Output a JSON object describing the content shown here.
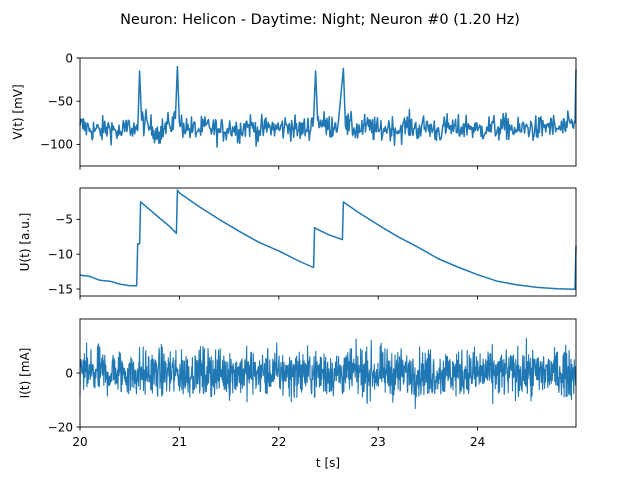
{
  "figure": {
    "title": "Neuron: Helicon - Daytime: Night; Neuron #0 (1.20 Hz)",
    "line_color": "#1f77b4",
    "xlabel": "t [s]",
    "x_ticks": [
      "20",
      "21",
      "22",
      "23",
      "24"
    ]
  },
  "chart_data": [
    {
      "type": "line",
      "ylabel": "V(t) [mV]",
      "xlim": [
        20,
        24.99
      ],
      "ylim": [
        -125,
        0
      ],
      "y_ticks": [
        0,
        -50,
        -100
      ],
      "y_tick_labels": [
        "0",
        "−50",
        "−100"
      ],
      "noise": "high-frequency membrane fluctuation between about -120 and -50 mV",
      "series": [
        {
          "x": [
            20.0,
            20.1,
            20.2,
            20.3,
            20.4,
            20.5,
            20.58,
            20.6,
            20.62,
            20.7,
            20.8,
            20.9,
            20.96,
            20.98,
            21.0,
            21.1,
            21.2,
            21.3,
            21.4,
            21.5,
            21.6,
            21.7,
            21.8,
            21.9,
            22.0,
            22.1,
            22.2,
            22.3,
            22.35,
            22.37,
            22.39,
            22.5,
            22.6,
            22.65,
            22.67,
            22.8,
            22.9,
            23.0,
            23.1,
            23.2,
            23.3,
            23.4,
            23.5,
            23.6,
            23.7,
            23.8,
            23.9,
            24.0,
            24.1,
            24.2,
            24.3,
            24.4,
            24.5,
            24.6,
            24.7,
            24.8,
            24.9,
            24.98,
            24.99
          ],
          "values": [
            -78,
            -82,
            -85,
            -80,
            -88,
            -79,
            -84,
            -15,
            -72,
            -80,
            -86,
            -78,
            -70,
            -10,
            -75,
            -82,
            -84,
            -79,
            -86,
            -80,
            -83,
            -77,
            -85,
            -80,
            -82,
            -78,
            -84,
            -81,
            -70,
            -15,
            -72,
            -80,
            -74,
            -12,
            -78,
            -83,
            -79,
            -85,
            -80,
            -84,
            -78,
            -82,
            -79,
            -85,
            -80,
            -83,
            -78,
            -84,
            -80,
            -82,
            -79,
            -85,
            -80,
            -83,
            -78,
            -82,
            -80,
            -75,
            -13
          ]
        }
      ]
    },
    {
      "type": "line",
      "ylabel": "U(t) [a.u.]",
      "xlim": [
        20,
        24.99
      ],
      "ylim": [
        -16,
        -0.5
      ],
      "y_ticks": [
        -5,
        -10,
        -15
      ],
      "y_tick_labels": [
        "−5",
        "−10",
        "−15"
      ],
      "series": [
        {
          "x": [
            20.0,
            20.1,
            20.2,
            20.3,
            20.4,
            20.5,
            20.57,
            20.58,
            20.6,
            20.61,
            20.7,
            20.8,
            20.9,
            20.97,
            20.98,
            21.0,
            21.2,
            21.4,
            21.6,
            21.8,
            22.0,
            22.2,
            22.35,
            22.36,
            22.37,
            22.5,
            22.64,
            22.65,
            22.66,
            22.8,
            23.0,
            23.2,
            23.4,
            23.6,
            23.8,
            24.0,
            24.2,
            24.4,
            24.6,
            24.8,
            24.98,
            24.99
          ],
          "values": [
            -13.0,
            -13.2,
            -13.7,
            -14.0,
            -14.3,
            -14.5,
            -14.6,
            -8.5,
            -8.5,
            -2.5,
            -3.6,
            -4.8,
            -6.0,
            -7.0,
            -0.8,
            -1.2,
            -3.2,
            -5.0,
            -6.7,
            -8.3,
            -9.6,
            -11.0,
            -12.0,
            -6.2,
            -6.3,
            -7.2,
            -7.9,
            -2.5,
            -2.6,
            -4.0,
            -5.8,
            -7.5,
            -9.0,
            -10.5,
            -11.8,
            -12.9,
            -13.8,
            -14.3,
            -14.8,
            -14.9,
            -15.0,
            -8.8
          ]
        }
      ]
    },
    {
      "type": "line",
      "ylabel": "I(t) [mA]",
      "xlim": [
        20,
        24.99
      ],
      "ylim": [
        -20,
        20
      ],
      "y_ticks": [
        0,
        -20
      ],
      "y_tick_labels": [
        "0",
        "−20"
      ],
      "noise": "dense white-noise current, amplitude about ±15 mA (extremes ±18 mA)",
      "series": []
    }
  ]
}
